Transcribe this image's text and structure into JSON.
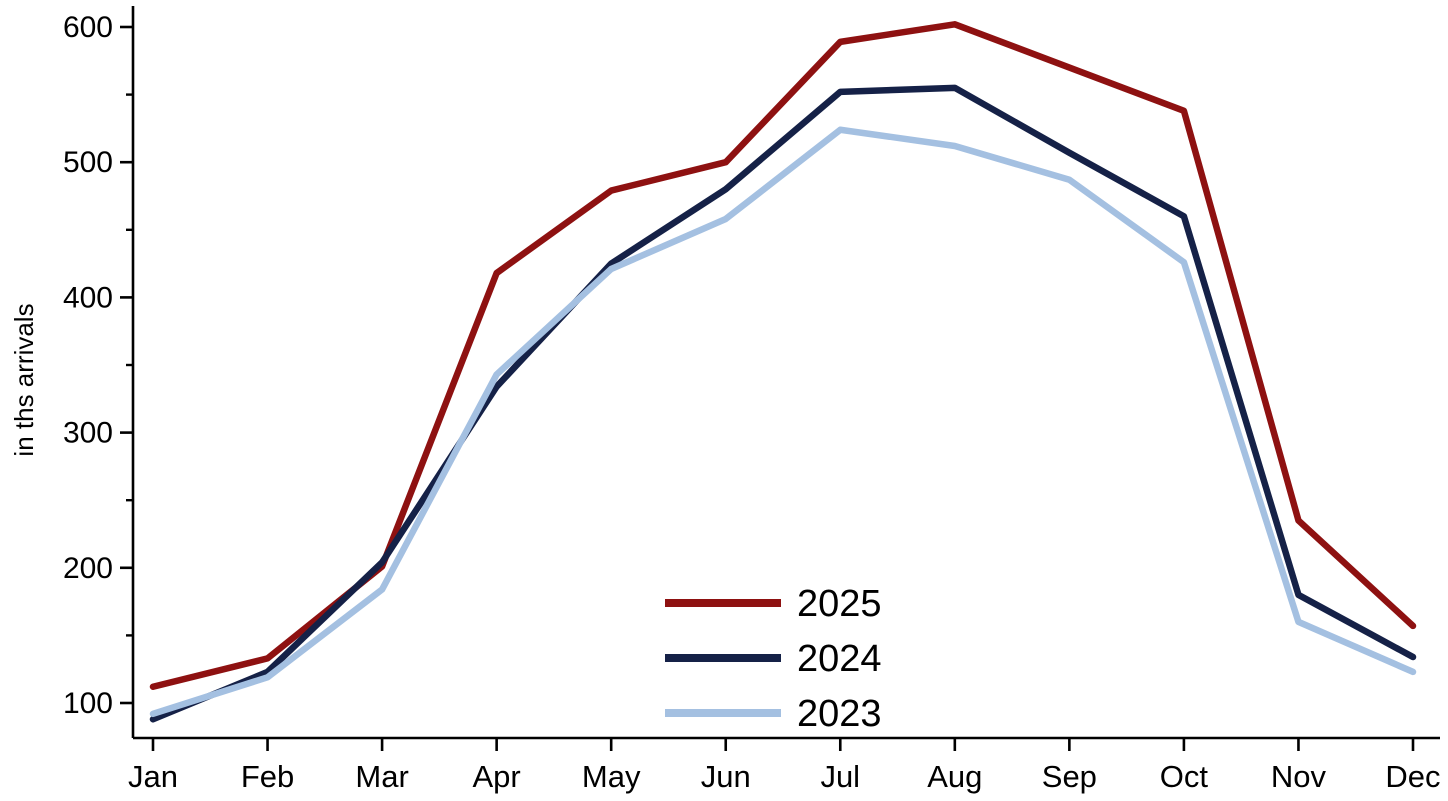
{
  "chart_data": {
    "type": "line",
    "title": "",
    "xlabel": "",
    "ylabel": "in ths arrivals",
    "categories": [
      "Jan",
      "Feb",
      "Mar",
      "Apr",
      "May",
      "Jun",
      "Jul",
      "Aug",
      "Sep",
      "Oct",
      "Nov",
      "Dec"
    ],
    "series": [
      {
        "name": "2025",
        "color": "#8E1111",
        "values": [
          112,
          133,
          201,
          418,
          479,
          500,
          589,
          602,
          570,
          538,
          235,
          157
        ]
      },
      {
        "name": "2024",
        "color": "#152147",
        "values": [
          88,
          123,
          204,
          334,
          425,
          480,
          552,
          555,
          507,
          460,
          180,
          134
        ]
      },
      {
        "name": "2023",
        "color": "#A4C0E1",
        "values": [
          92,
          119,
          184,
          343,
          421,
          458,
          524,
          512,
          487,
          426,
          160,
          123
        ]
      }
    ],
    "y_ticks_major": [
      100,
      200,
      300,
      400,
      500,
      600
    ],
    "y_ticks_minor": [
      150,
      250,
      350,
      450,
      550
    ],
    "ylim": [
      74,
      617
    ],
    "grid": false,
    "legend_position": "inside-bottom-center",
    "axis_color": "#000000",
    "background_color": "#ffffff"
  }
}
